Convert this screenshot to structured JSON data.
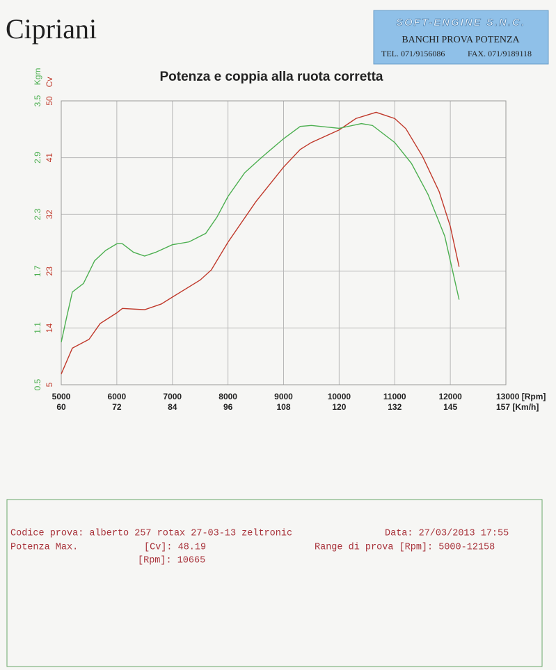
{
  "header": {
    "name": "Cipriani",
    "company": "SOFT-ENGINE S.N.C.",
    "service": "BANCHI PROVA POTENZA",
    "tel": "TEL. 071/9156086",
    "fax": "FAX. 071/9189118"
  },
  "chart_data": {
    "type": "line",
    "title": "Potenza e coppia alla ruota corretta",
    "y_label": "Cv",
    "y2_label": "Kgm",
    "xlim": [
      5000,
      13000
    ],
    "xticks": [
      5000,
      6000,
      7000,
      8000,
      9000,
      10000,
      11000,
      12000,
      {
        "value": 13000,
        "label": "13000 [Rpm]"
      }
    ],
    "x2ticks": [
      {
        "value": 5000,
        "label": "60"
      },
      {
        "value": 6000,
        "label": "72"
      },
      {
        "value": 7000,
        "label": "84"
      },
      {
        "value": 8000,
        "label": "96"
      },
      {
        "value": 9000,
        "label": "108"
      },
      {
        "value": 10000,
        "label": "120"
      },
      {
        "value": 11000,
        "label": "132"
      },
      {
        "value": 12000,
        "label": "145"
      },
      {
        "value": 13000,
        "label": "157 [Km/h]"
      }
    ],
    "ylim": [
      5,
      50
    ],
    "yticks": [
      5,
      14,
      23,
      32,
      41,
      50
    ],
    "y2lim": [
      0.5,
      3.5
    ],
    "y2ticks": [
      0.5,
      1.1,
      1.7,
      2.3,
      2.9,
      3.5
    ],
    "grid": true,
    "series": [
      {
        "color": "#c0392b",
        "axis": "y",
        "x": [
          5000,
          5200,
          5500,
          5700,
          6000,
          6100,
          6500,
          6800,
          7000,
          7500,
          7700,
          8000,
          8500,
          9000,
          9300,
          9500,
          10000,
          10300,
          10665,
          11000,
          11200,
          11500,
          11800,
          12000,
          12158
        ],
        "values": [
          6.7,
          10.8,
          12.2,
          14.7,
          16.4,
          17.1,
          16.9,
          17.8,
          18.9,
          21.6,
          23.2,
          27.6,
          34,
          39.5,
          42.3,
          43.4,
          45.4,
          47.2,
          48.19,
          47.2,
          45.6,
          41.2,
          35.6,
          30.1,
          23.7
        ]
      },
      {
        "color": "#4caf50",
        "axis": "y2",
        "x": [
          5000,
          5100,
          5200,
          5400,
          5600,
          5800,
          6000,
          6100,
          6300,
          6500,
          6700,
          7000,
          7300,
          7600,
          7800,
          8000,
          8300,
          8600,
          9000,
          9300,
          9500,
          10000,
          10400,
          10600,
          11000,
          11300,
          11600,
          11900,
          12158
        ],
        "values": [
          0.95,
          1.22,
          1.48,
          1.57,
          1.81,
          1.92,
          1.99,
          1.99,
          1.9,
          1.86,
          1.9,
          1.98,
          2.01,
          2.1,
          2.27,
          2.49,
          2.74,
          2.9,
          3.1,
          3.23,
          3.24,
          3.21,
          3.26,
          3.24,
          3.06,
          2.84,
          2.51,
          2.07,
          1.4
        ]
      }
    ]
  },
  "footer": {
    "code": "Codice prova: alberto 257 rotax 27-03-13 zeltronic",
    "date": "Data: 27/03/2013 17:55",
    "max_label": "Potenza Max.",
    "max_cv": "[Cv]: 48.19",
    "range": "Range di prova [Rpm]: 5000-12158",
    "max_rpm": "[Rpm]: 10665"
  }
}
